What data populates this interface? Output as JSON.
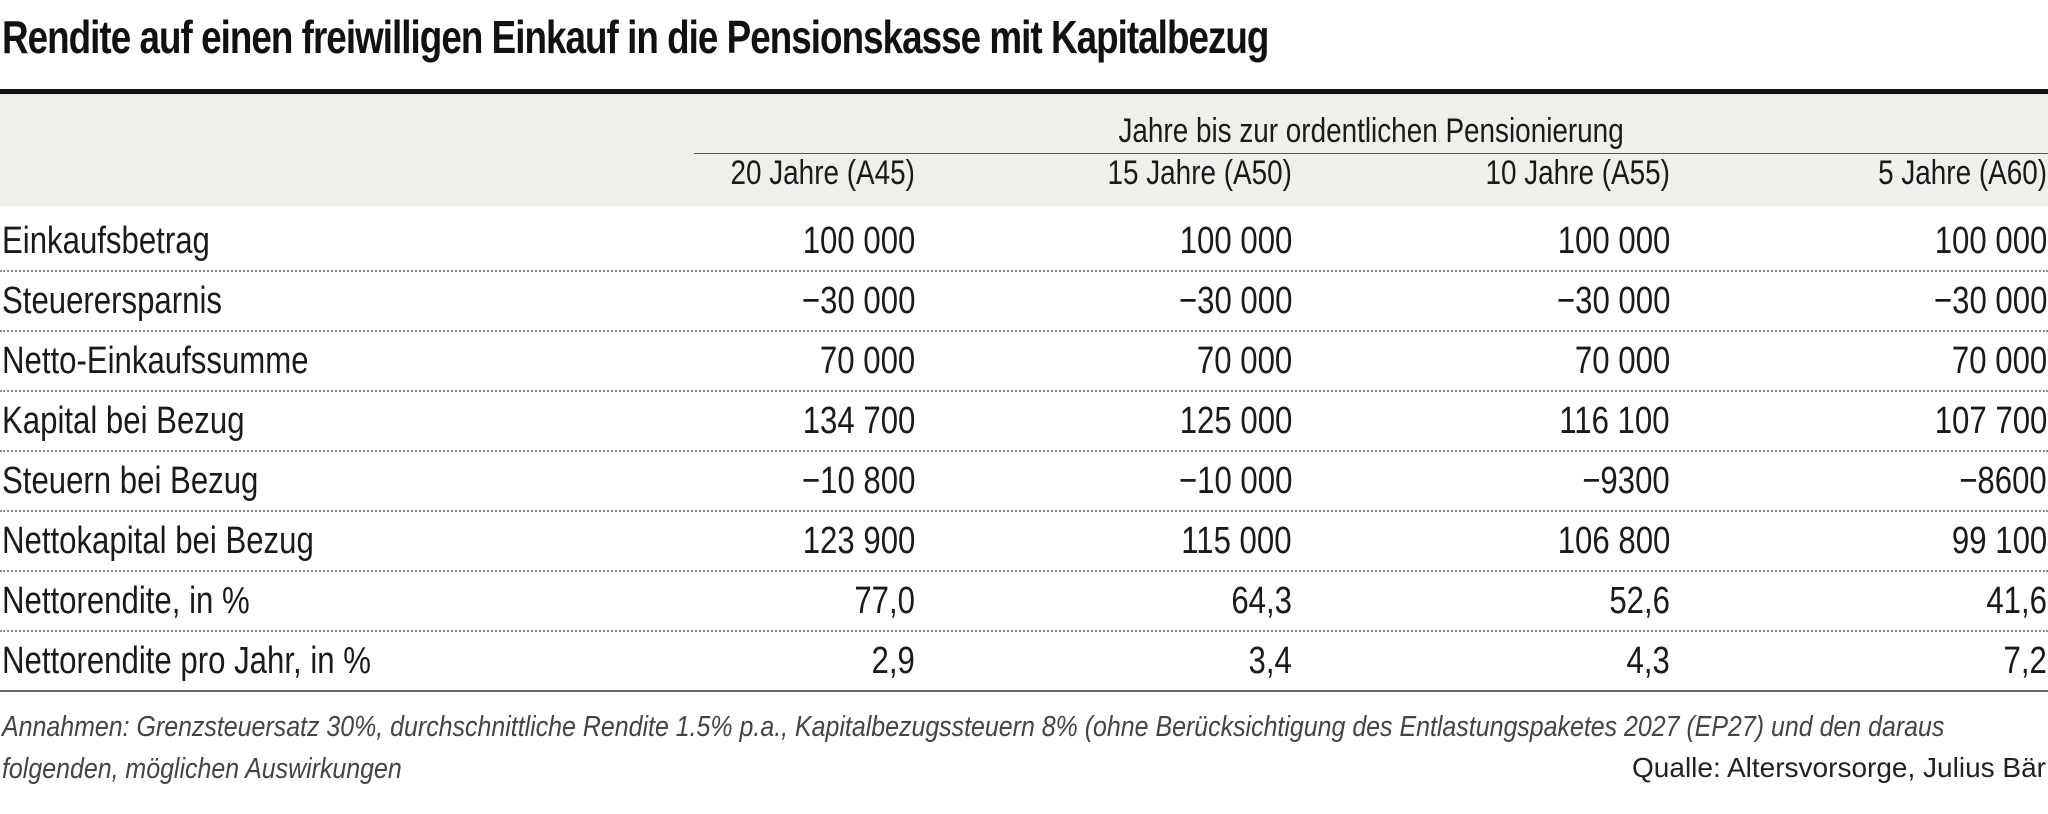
{
  "title": "Rendite auf einen freiwilligen Einkauf in die Pensionskasse mit Kapitalbezug",
  "group_header": "Jahre bis zur ordentlichen Pensionierung",
  "columns": [
    "20 Jahre (A45)",
    "15 Jahre (A50)",
    "10 Jahre (A55)",
    "5 Jahre (A60)"
  ],
  "rows": [
    {
      "label": "Einkaufsbetrag",
      "values": [
        "100 000",
        "100 000",
        "100 000",
        "100 000"
      ]
    },
    {
      "label": "Steuerersparnis",
      "values": [
        "−30 000",
        "−30 000",
        "−30 000",
        "−30 000"
      ]
    },
    {
      "label": "Netto-Einkaufssumme",
      "values": [
        "70 000",
        "70 000",
        "70 000",
        "70 000"
      ]
    },
    {
      "label": "Kapital bei Bezug",
      "values": [
        "134 700",
        "125 000",
        "116 100",
        "107 700"
      ]
    },
    {
      "label": "Steuern bei Bezug",
      "values": [
        "−10 800",
        "−10 000",
        "−9300",
        "−8600"
      ]
    },
    {
      "label": "Nettokapital bei Bezug",
      "values": [
        "123 900",
        "115 000",
        "106 800",
        "99 100"
      ]
    },
    {
      "label": "Nettorendite, in %",
      "values": [
        "77,0",
        "64,3",
        "52,6",
        "41,6"
      ]
    },
    {
      "label": "Nettorendite pro Jahr, in %",
      "values": [
        "2,9",
        "3,4",
        "4,3",
        "7,2"
      ]
    }
  ],
  "footnote": "Annahmen: Grenzsteuersatz 30%, durchschnittliche Rendite 1.5% p.a., Kapitalbezugssteuern 8% (ohne Berücksichtigung des Entlastungspaketes 2027 (EP27) und den daraus folgenden, möglichen Auswirkungen",
  "source": "Qualle: Altersvorsorge, Julius Bär",
  "colors": {
    "header_band": "#f1efec",
    "rule": "#111111",
    "text": "#1a1a1a"
  }
}
